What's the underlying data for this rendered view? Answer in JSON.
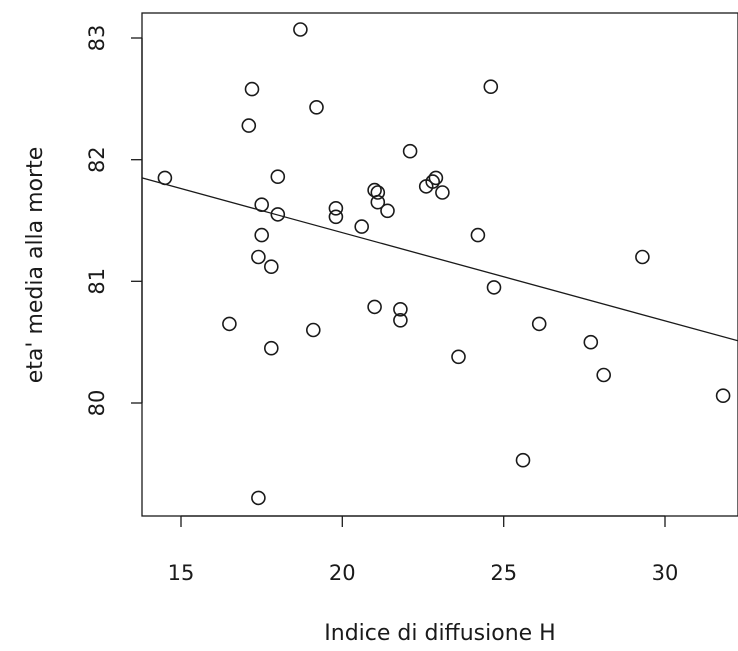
{
  "chart_data": {
    "type": "scatter",
    "title": "",
    "xlabel": "Indice di diffusione H",
    "ylabel": "eta' media alla morte",
    "xlim": [
      14,
      32
    ],
    "ylim": [
      79.3,
      83.2
    ],
    "xticks": [
      15,
      20,
      25,
      30
    ],
    "yticks": [
      80,
      81,
      82,
      83
    ],
    "xtick_labels": [
      "15",
      "20",
      "25",
      "30"
    ],
    "ytick_labels": [
      "80",
      "81",
      "82",
      "83"
    ],
    "grid": false,
    "legend": "none",
    "marker": "open-circle",
    "points": [
      {
        "x": 14.5,
        "y": 81.85
      },
      {
        "x": 16.5,
        "y": 80.65
      },
      {
        "x": 17.1,
        "y": 82.28
      },
      {
        "x": 17.2,
        "y": 82.58
      },
      {
        "x": 17.4,
        "y": 81.2
      },
      {
        "x": 17.5,
        "y": 81.63
      },
      {
        "x": 17.5,
        "y": 81.38
      },
      {
        "x": 17.4,
        "y": 79.22
      },
      {
        "x": 17.8,
        "y": 81.12
      },
      {
        "x": 17.8,
        "y": 80.45
      },
      {
        "x": 18.0,
        "y": 81.86
      },
      {
        "x": 18.0,
        "y": 81.55
      },
      {
        "x": 18.7,
        "y": 83.07
      },
      {
        "x": 19.1,
        "y": 80.6
      },
      {
        "x": 19.2,
        "y": 82.43
      },
      {
        "x": 19.8,
        "y": 81.6
      },
      {
        "x": 19.8,
        "y": 81.53
      },
      {
        "x": 20.6,
        "y": 81.45
      },
      {
        "x": 21.0,
        "y": 81.75
      },
      {
        "x": 21.1,
        "y": 81.73
      },
      {
        "x": 21.1,
        "y": 81.65
      },
      {
        "x": 21.0,
        "y": 80.79
      },
      {
        "x": 21.4,
        "y": 81.58
      },
      {
        "x": 21.8,
        "y": 80.77
      },
      {
        "x": 21.8,
        "y": 80.68
      },
      {
        "x": 22.1,
        "y": 82.07
      },
      {
        "x": 22.6,
        "y": 81.78
      },
      {
        "x": 22.8,
        "y": 81.82
      },
      {
        "x": 22.9,
        "y": 81.85
      },
      {
        "x": 23.1,
        "y": 81.73
      },
      {
        "x": 23.6,
        "y": 80.38
      },
      {
        "x": 24.2,
        "y": 81.38
      },
      {
        "x": 24.6,
        "y": 82.6
      },
      {
        "x": 24.7,
        "y": 80.95
      },
      {
        "x": 25.6,
        "y": 79.53
      },
      {
        "x": 26.1,
        "y": 80.65
      },
      {
        "x": 27.7,
        "y": 80.5
      },
      {
        "x": 28.1,
        "y": 80.23
      },
      {
        "x": 29.3,
        "y": 81.2
      },
      {
        "x": 31.8,
        "y": 80.06
      }
    ],
    "regression_line": {
      "intercept": 82.85,
      "slope": -0.0725
    }
  }
}
